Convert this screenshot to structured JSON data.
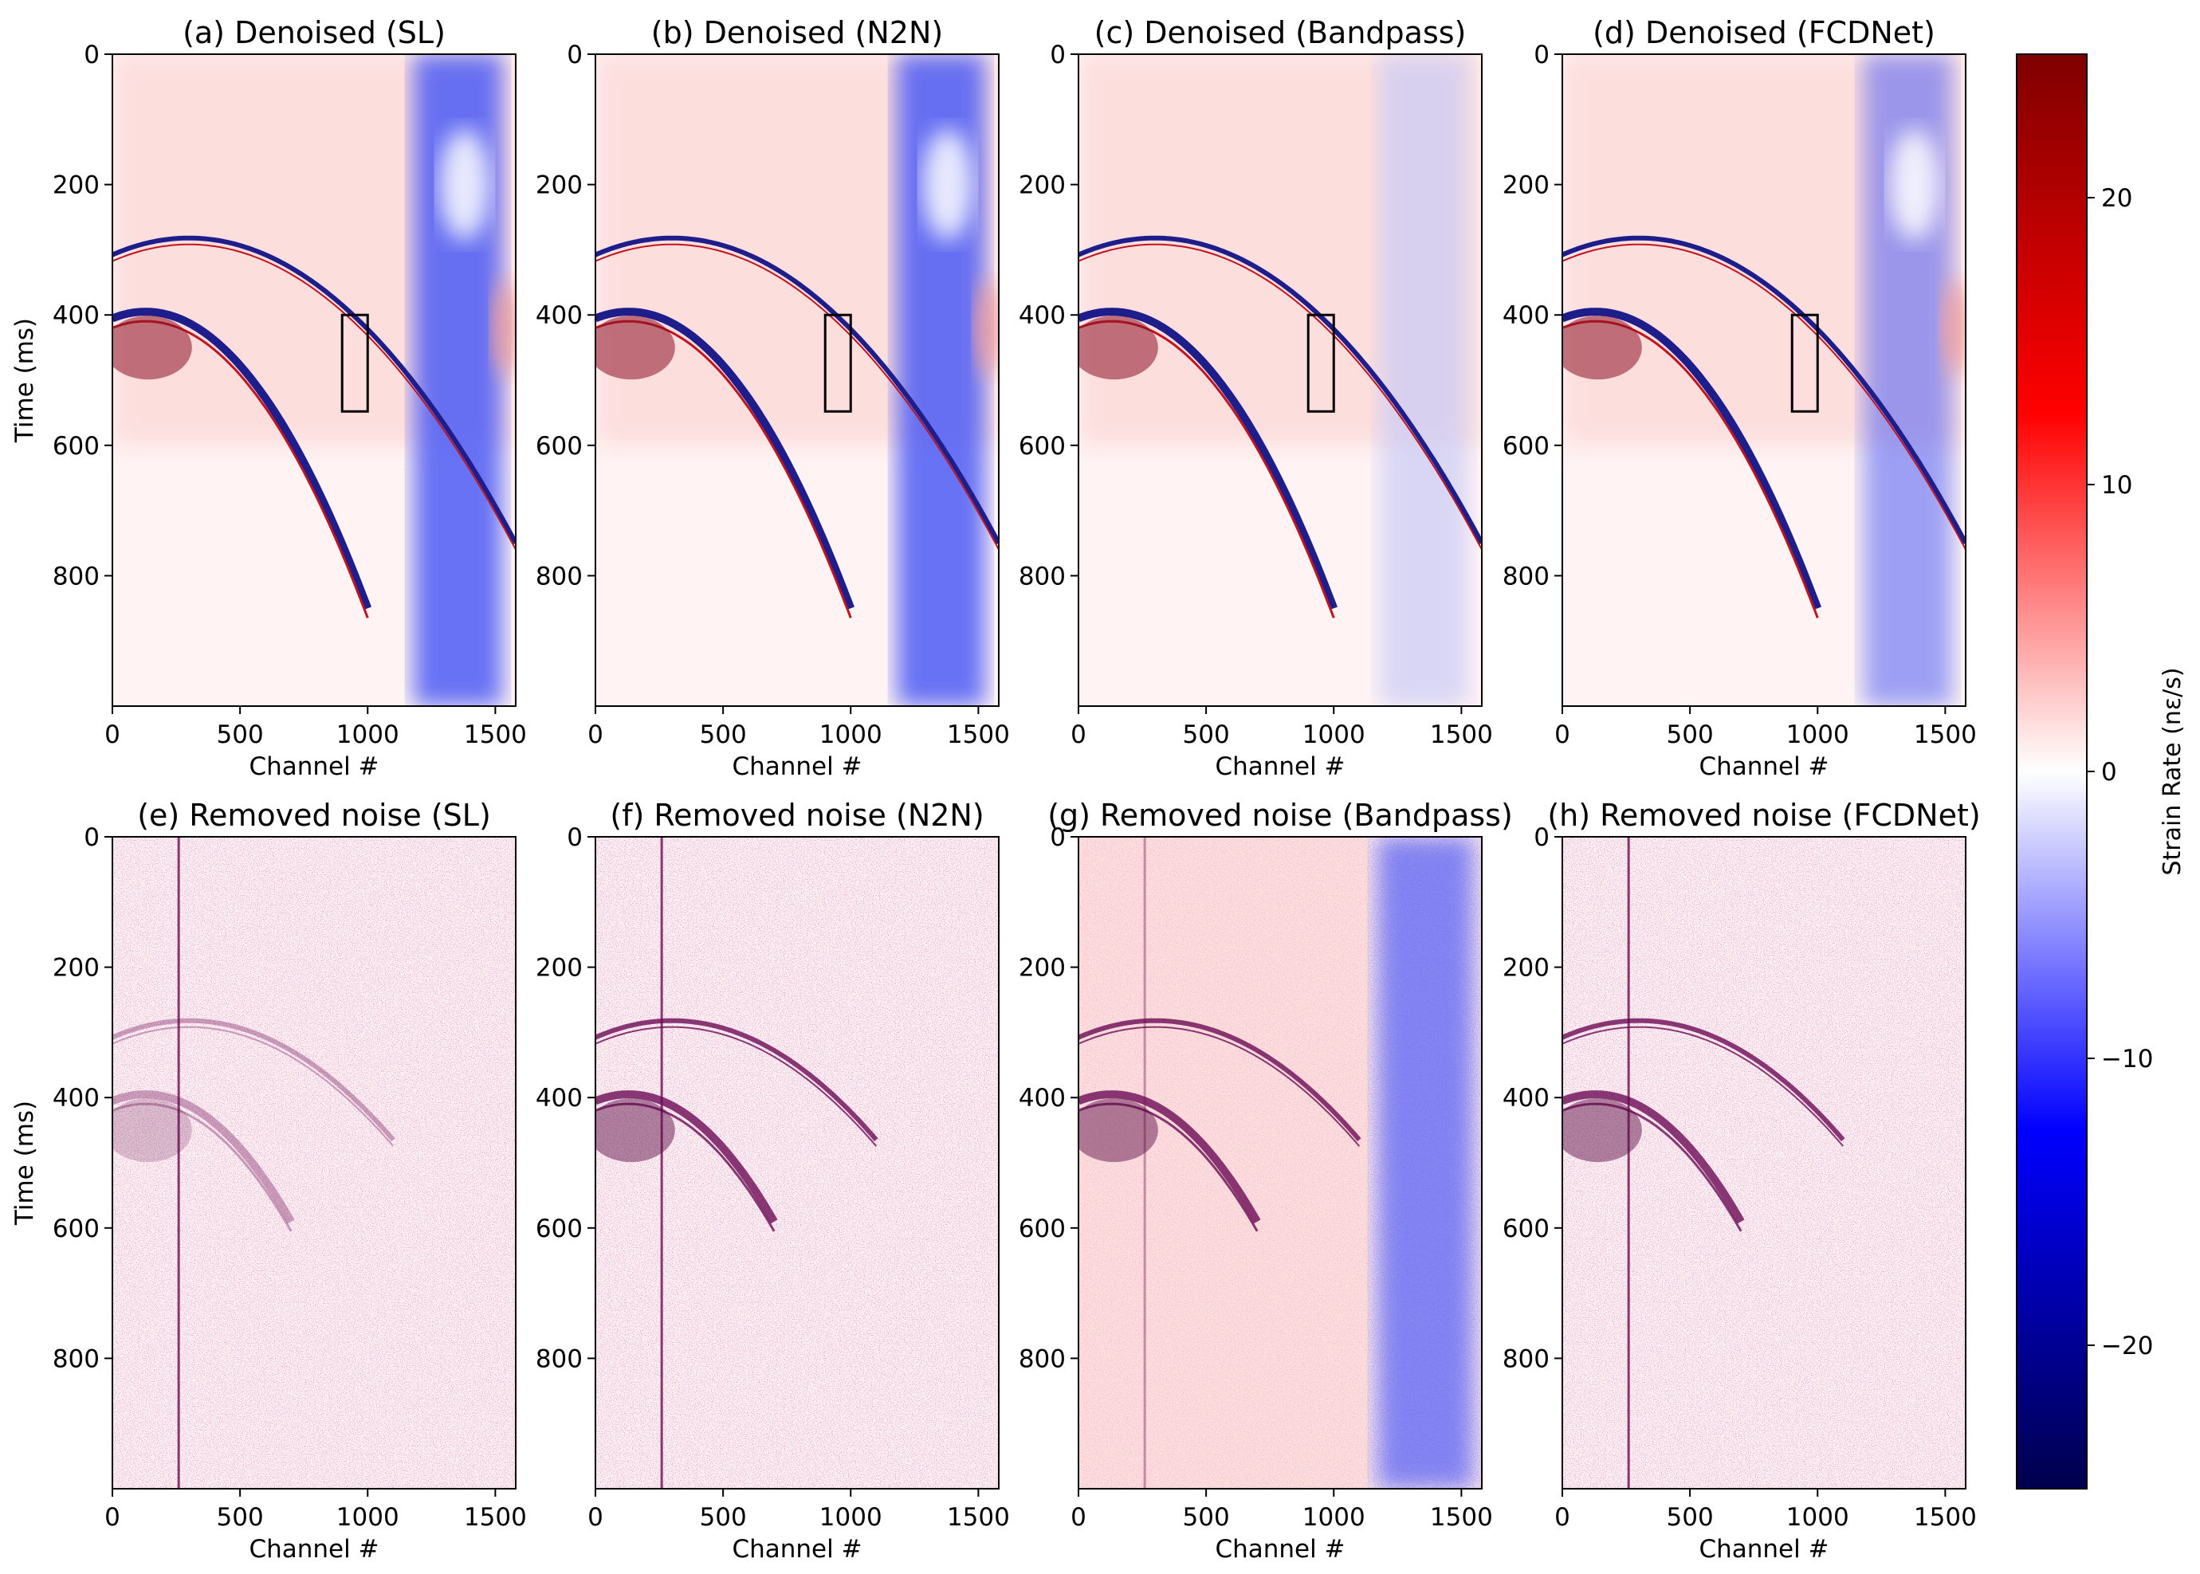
{
  "figure_title": "",
  "chart_data": {
    "type": "heatmap",
    "colormap": "seismic",
    "panels": [
      {
        "key": "a",
        "title": "(a) Denoised (SL)",
        "row": "denoised",
        "method": "SL",
        "show_ylabel": true,
        "show_box": true
      },
      {
        "key": "b",
        "title": "(b) Denoised (N2N)",
        "row": "denoised",
        "method": "N2N",
        "show_ylabel": false,
        "show_box": true
      },
      {
        "key": "c",
        "title": "(c) Denoised (Bandpass)",
        "row": "denoised",
        "method": "Bandpass",
        "show_ylabel": false,
        "show_box": true
      },
      {
        "key": "d",
        "title": "(d) Denoised (FCDNet)",
        "row": "denoised",
        "method": "FCDNet",
        "show_ylabel": false,
        "show_box": true
      },
      {
        "key": "e",
        "title": "(e) Removed noise (SL)",
        "row": "noise",
        "method": "SL",
        "show_ylabel": true,
        "show_box": false
      },
      {
        "key": "f",
        "title": "(f) Removed noise (N2N)",
        "row": "noise",
        "method": "N2N",
        "show_ylabel": false,
        "show_box": false
      },
      {
        "key": "g",
        "title": "(g) Removed noise (Bandpass)",
        "row": "noise",
        "method": "Bandpass",
        "show_ylabel": false,
        "show_box": false
      },
      {
        "key": "h",
        "title": "(h) Removed noise (FCDNet)",
        "row": "noise",
        "method": "FCDNet",
        "show_ylabel": false,
        "show_box": false
      }
    ],
    "xlabel": "Channel #",
    "ylabel": "Time (ms)",
    "xlim": [
      0,
      1580
    ],
    "ylim": [
      1000,
      0
    ],
    "xticks": [
      0,
      500,
      1000,
      1500
    ],
    "xtick_labels": [
      "0",
      "500",
      "1000",
      "1500"
    ],
    "yticks": [
      0,
      200,
      400,
      600,
      800
    ],
    "ytick_labels": [
      "0",
      "200",
      "400",
      "600",
      "800"
    ],
    "highlight_box": {
      "channel_range": [
        900,
        1000
      ],
      "time_range_ms": [
        400,
        548
      ]
    },
    "colorbar": {
      "label": "Strain Rate (nε/s)",
      "range": [
        -25,
        25
      ],
      "ticks": [
        20,
        10,
        0,
        -10,
        -20
      ],
      "tick_labels": [
        "20",
        "10",
        "0",
        "−10",
        "−20"
      ]
    },
    "events": {
      "early_arrival": {
        "apex_channel": 300,
        "apex_time_ms": 282,
        "end_channel": 1580,
        "end_time_ms": 750
      },
      "late_arrival": {
        "apex_channel": 130,
        "apex_time_ms": 395,
        "end_channel": 1000,
        "end_time_ms": 850
      }
    },
    "colors": {
      "positive": "#b2182b",
      "negative": "#0000ff",
      "noise": "#7a0a55",
      "box": "#000000"
    }
  }
}
